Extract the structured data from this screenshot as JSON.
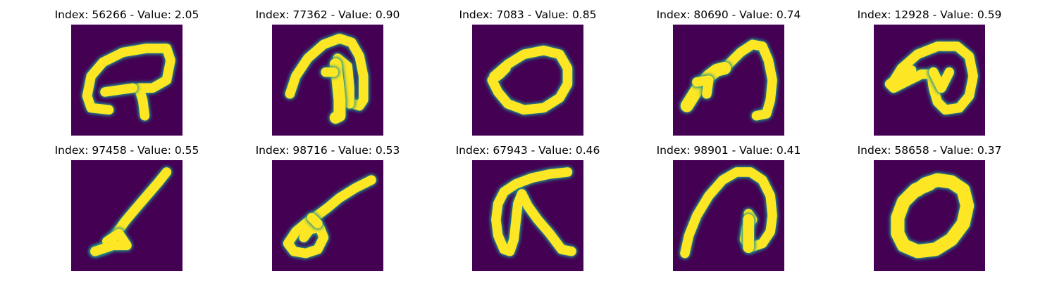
{
  "colors": {
    "background": "#440154",
    "stroke_mid": "#21918c",
    "stroke": "#fde725"
  },
  "panels": [
    {
      "index": "56266",
      "value": "2.05",
      "title": "Index: 56266 - Value: 2.05",
      "glyph": "curl-loop-icon"
    },
    {
      "index": "77362",
      "value": "0.90",
      "title": "Index: 77362 - Value: 0.90",
      "glyph": "arch-stem-icon"
    },
    {
      "index": "7083",
      "value": "0.85",
      "title": "Index: 7083 - Value: 0.85",
      "glyph": "oval-tail-icon"
    },
    {
      "index": "80690",
      "value": "0.74",
      "title": "Index: 80690 - Value: 0.74",
      "glyph": "hook-arrow-icon"
    },
    {
      "index": "12928",
      "value": "0.59",
      "title": "Index: 12928 - Value: 0.59",
      "glyph": "loop-swirl-icon"
    },
    {
      "index": "97458",
      "value": "0.55",
      "title": "Index: 97458 - Value: 0.55",
      "glyph": "diagonal-loop-icon"
    },
    {
      "index": "98716",
      "value": "0.53",
      "title": "Index: 98716 - Value: 0.53",
      "glyph": "diagonal-blob-icon"
    },
    {
      "index": "67943",
      "value": "0.46",
      "title": "Index: 67943 - Value: 0.46",
      "glyph": "alpha-cross-icon"
    },
    {
      "index": "98901",
      "value": "0.41",
      "title": "Index: 98901 - Value: 0.41",
      "glyph": "hook-curl-icon"
    },
    {
      "index": "58658",
      "value": "0.37",
      "title": "Index: 58658 - Value: 0.37",
      "glyph": "zero-ring-icon"
    }
  ]
}
